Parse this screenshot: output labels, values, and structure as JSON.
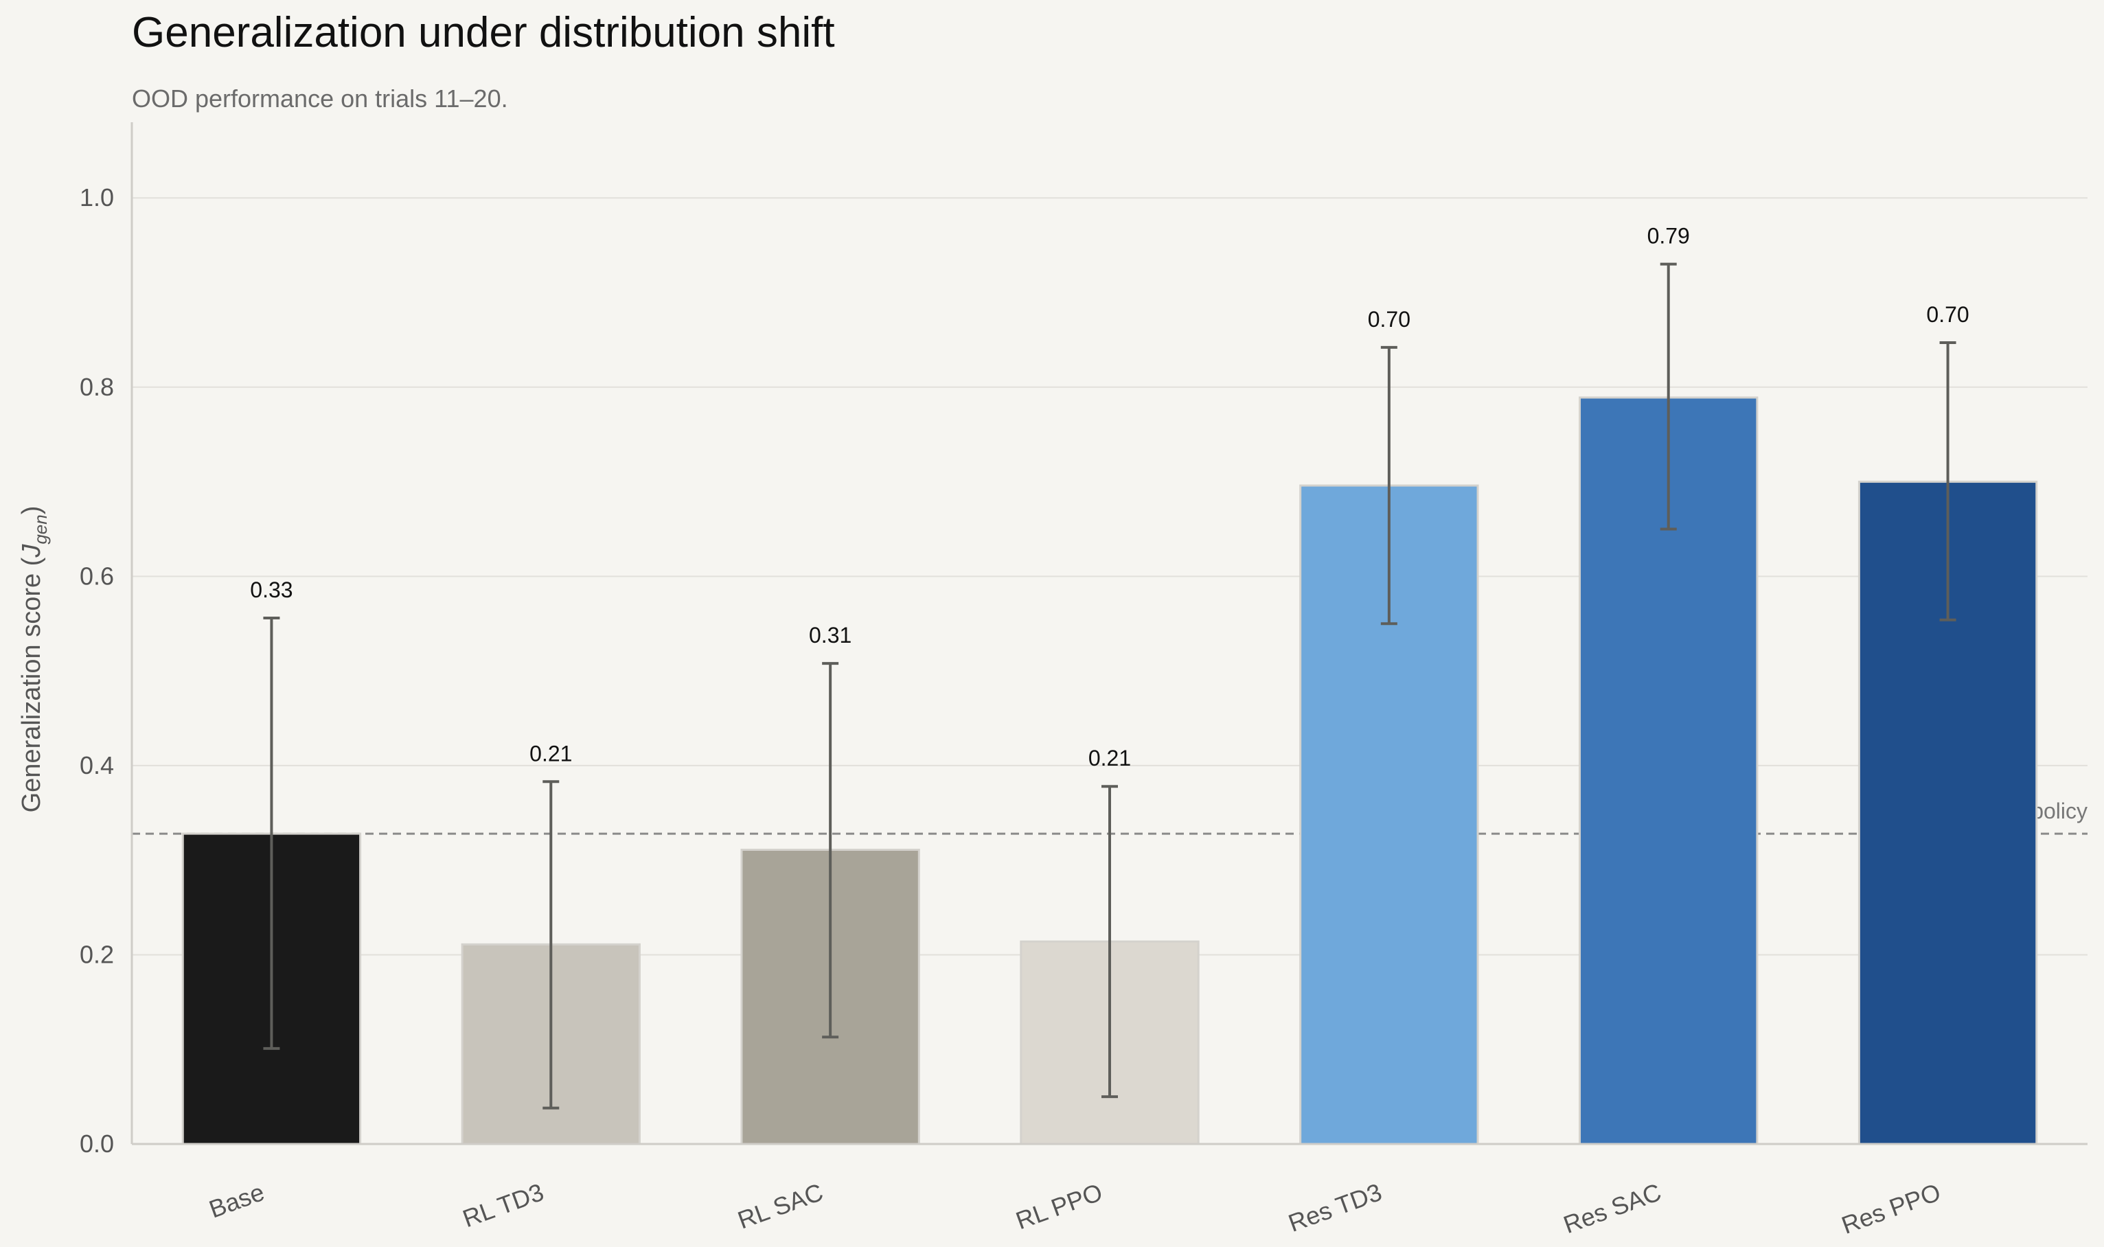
{
  "title": "Generalization under distribution shift",
  "subtitle": "OOD performance on trials 11–20.",
  "chart_data": {
    "type": "bar",
    "title": "Generalization under distribution shift",
    "subtitle": "OOD performance on trials 11–20.",
    "xlabel": "",
    "ylabel": "Generalization score (",
    "ylabel_symbol": "J",
    "ylabel_subscript": "gen",
    "ylabel_close": ")",
    "ylim": [
      0,
      1.08
    ],
    "yticks": [
      0.0,
      0.2,
      0.4,
      0.6,
      0.8,
      1.0
    ],
    "ytick_labels": [
      "0.0",
      "0.2",
      "0.4",
      "0.6",
      "0.8",
      "1.0"
    ],
    "grid": "horizontal",
    "categories": [
      "Base",
      "RL TD3",
      "RL SAC",
      "RL PPO",
      "Res TD3",
      "Res SAC",
      "Res PPO"
    ],
    "values": [
      0.328,
      0.211,
      0.311,
      0.214,
      0.696,
      0.789,
      0.7
    ],
    "value_labels": [
      "0.33",
      "0.21",
      "0.31",
      "0.21",
      "0.70",
      "0.79",
      "0.70"
    ],
    "error_low": [
      0.101,
      0.038,
      0.113,
      0.05,
      0.55,
      0.65,
      0.554
    ],
    "error_high": [
      0.556,
      0.383,
      0.508,
      0.378,
      0.842,
      0.93,
      0.847
    ],
    "colors": [
      "#1a1a1a",
      "#c8c4bb",
      "#a8a498",
      "#dcd8d0",
      "#6fa8db",
      "#3d76b7",
      "#204f8c"
    ],
    "reference_line": {
      "value": 0.328,
      "label": "base policy",
      "style": "dashed"
    }
  }
}
